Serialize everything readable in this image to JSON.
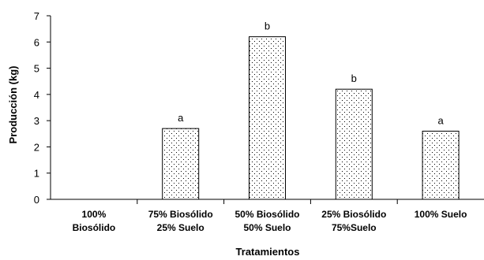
{
  "chart_data": {
    "type": "bar",
    "xlabel": "Tratamientos",
    "ylabel": "Producción (kg)",
    "ylim": [
      0,
      7
    ],
    "yticks": [
      0,
      1,
      2,
      3,
      4,
      5,
      6,
      7
    ],
    "categories": [
      [
        "100%",
        "Biosólido"
      ],
      [
        "75% Biosólido",
        "25% Suelo"
      ],
      [
        "50% Biosólido",
        "50% Suelo"
      ],
      [
        "25% Biosólido",
        "75%Suelo"
      ],
      [
        "100% Suelo"
      ]
    ],
    "values": [
      0,
      2.7,
      6.2,
      4.2,
      2.6
    ],
    "labels": [
      "",
      "a",
      "b",
      "b",
      "a"
    ],
    "grid": false,
    "legend": "none",
    "bar_fill": "dotted",
    "colors": {
      "bar_stroke": "#000000",
      "dot": "#000000",
      "axis": "#000000",
      "background": "#ffffff"
    }
  }
}
